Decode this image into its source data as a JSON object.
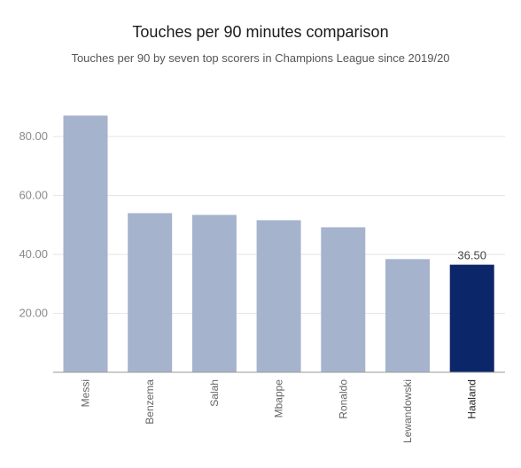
{
  "chart_data": {
    "type": "bar",
    "title": "Touches per 90 minutes comparison",
    "subtitle": "Touches per 90 by seven top scorers in Champions League since 2019/20",
    "xlabel": "",
    "ylabel": "",
    "categories": [
      "Messi",
      "Benzema",
      "Salah",
      "Mbappe",
      "Ronaldo",
      "Lewandowski",
      "Haaland"
    ],
    "values": [
      87.1,
      54.0,
      53.4,
      51.6,
      49.2,
      38.4,
      36.5
    ],
    "highlight_category": "Haaland",
    "data_labels": [
      {
        "category": "Haaland",
        "text": "36.50"
      }
    ],
    "ylim": [
      0,
      95
    ],
    "yticks": [
      {
        "value": 20,
        "label": "20.00"
      },
      {
        "value": 40,
        "label": "40.00"
      },
      {
        "value": 60,
        "label": "60.00"
      },
      {
        "value": 80,
        "label": "80.00"
      }
    ],
    "grid": true,
    "colors": {
      "bar": "#a6b3cd",
      "highlight": "#0b2669",
      "grid": "#e6e6e6",
      "axis": "#999999"
    }
  }
}
